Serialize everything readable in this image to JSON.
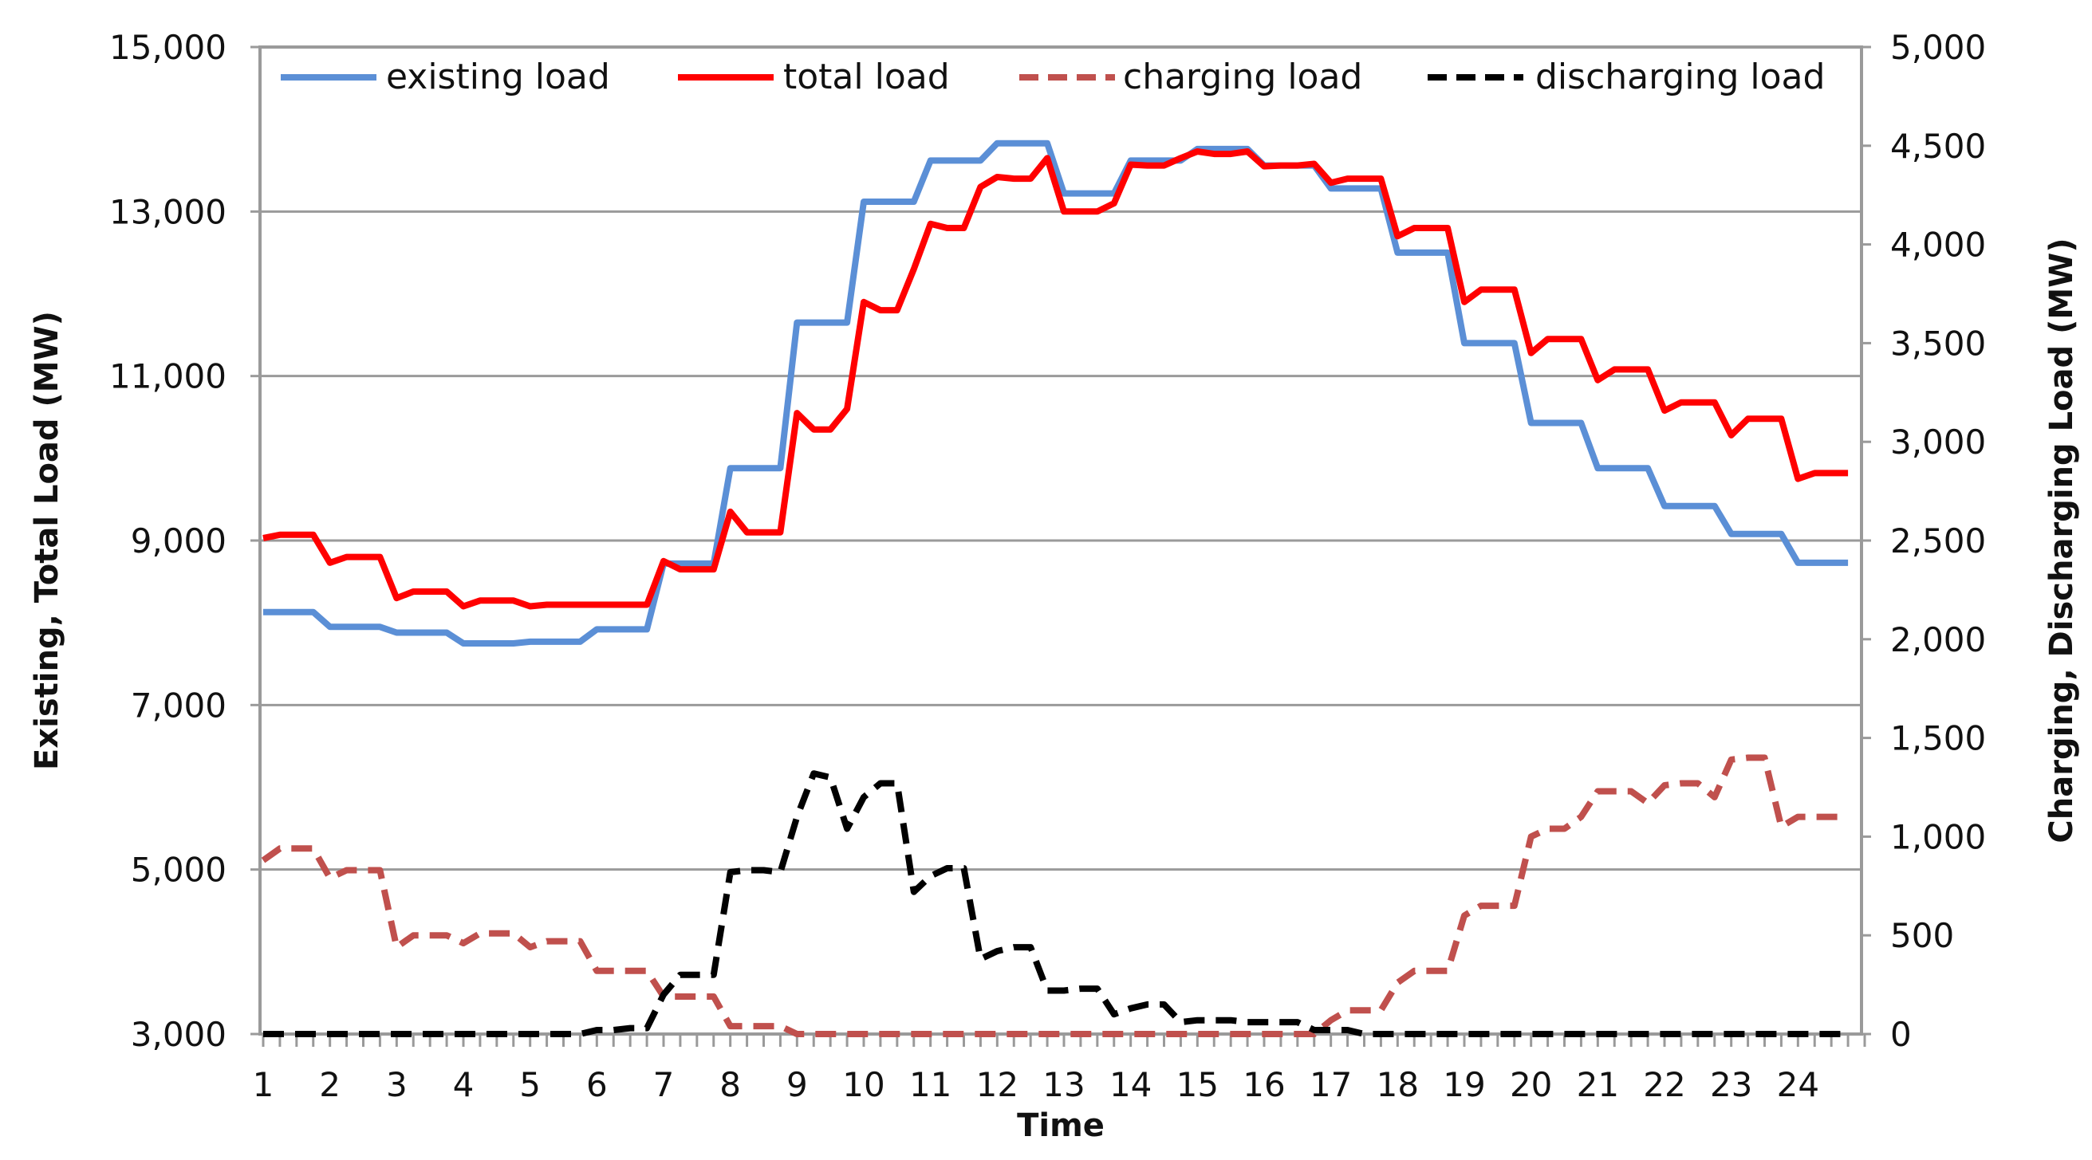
{
  "chart_data": {
    "type": "line",
    "title": "",
    "xlabel": "Time",
    "ylabel_left": "Existing, Total Load (MW)",
    "ylabel_right": "Charging, Discharging Load (MW)",
    "xlim": [
      1,
      25
    ],
    "ylim_left": [
      3000,
      15000
    ],
    "ylim_right": [
      0,
      5000
    ],
    "x_ticks": [
      1,
      2,
      3,
      4,
      5,
      6,
      7,
      8,
      9,
      10,
      11,
      12,
      13,
      14,
      15,
      16,
      17,
      18,
      19,
      20,
      21,
      22,
      23,
      24
    ],
    "y_left_ticks": [
      "3,000",
      "5,000",
      "7,000",
      "9,000",
      "11,000",
      "13,000",
      "15,000"
    ],
    "y_right_ticks": [
      "0",
      "500",
      "1,000",
      "1,500",
      "2,000",
      "2,500",
      "3,000",
      "3,500",
      "4,000",
      "4,500",
      "5,000"
    ],
    "grid": "horizontal, left axis",
    "legend_position": "top",
    "x": [
      1,
      1.25,
      1.5,
      1.75,
      2,
      2.25,
      2.5,
      2.75,
      3,
      3.25,
      3.5,
      3.75,
      4,
      4.25,
      4.5,
      4.75,
      5,
      5.25,
      5.5,
      5.75,
      6,
      6.25,
      6.5,
      6.75,
      7,
      7.25,
      7.5,
      7.75,
      8,
      8.25,
      8.5,
      8.75,
      9,
      9.25,
      9.5,
      9.75,
      10,
      10.25,
      10.5,
      10.75,
      11,
      11.25,
      11.5,
      11.75,
      12,
      12.25,
      12.5,
      12.75,
      13,
      13.25,
      13.5,
      13.75,
      14,
      14.25,
      14.5,
      14.75,
      15,
      15.25,
      15.5,
      15.75,
      16,
      16.25,
      16.5,
      16.75,
      17,
      17.25,
      17.5,
      17.75,
      18,
      18.25,
      18.5,
      18.75,
      19,
      19.25,
      19.5,
      19.75,
      20,
      20.25,
      20.5,
      20.75,
      21,
      21.25,
      21.5,
      21.75,
      22,
      22.25,
      22.5,
      22.75,
      23,
      23.25,
      23.5,
      23.75,
      24,
      24.25,
      24.5,
      24.75
    ],
    "series": [
      {
        "name": "existing load",
        "axis": "left",
        "color": "#5B8FD6",
        "dash": false,
        "values": [
          8130,
          8130,
          8130,
          8130,
          7950,
          7950,
          7950,
          7950,
          7880,
          7880,
          7880,
          7880,
          7750,
          7750,
          7750,
          7750,
          7770,
          7770,
          7770,
          7770,
          7920,
          7920,
          7920,
          7920,
          8720,
          8720,
          8720,
          8720,
          9880,
          9880,
          9880,
          9880,
          11650,
          11650,
          11650,
          11650,
          13120,
          13120,
          13120,
          13120,
          13620,
          13620,
          13620,
          13620,
          13830,
          13830,
          13830,
          13830,
          13220,
          13220,
          13220,
          13220,
          13620,
          13620,
          13620,
          13620,
          13760,
          13760,
          13760,
          13760,
          13560,
          13560,
          13560,
          13560,
          13280,
          13280,
          13280,
          13280,
          12500,
          12500,
          12500,
          12500,
          11400,
          11400,
          11400,
          11400,
          10430,
          10430,
          10430,
          10430,
          9880,
          9880,
          9880,
          9880,
          9420,
          9420,
          9420,
          9420,
          9080,
          9080,
          9080,
          9080,
          8730,
          8730,
          8730,
          8730
        ]
      },
      {
        "name": "total load",
        "axis": "left",
        "color": "#FF0000",
        "dash": false,
        "values": [
          9030,
          9070,
          9070,
          9070,
          8730,
          8800,
          8800,
          8800,
          8300,
          8380,
          8380,
          8380,
          8200,
          8270,
          8270,
          8270,
          8200,
          8220,
          8220,
          8220,
          8220,
          8220,
          8220,
          8220,
          8750,
          8650,
          8650,
          8650,
          9350,
          9100,
          9100,
          9100,
          10550,
          10350,
          10350,
          10600,
          11900,
          11800,
          11800,
          12300,
          12850,
          12800,
          12800,
          13300,
          13420,
          13400,
          13400,
          13650,
          13000,
          13000,
          13000,
          13100,
          13570,
          13560,
          13560,
          13650,
          13730,
          13700,
          13700,
          13730,
          13550,
          13560,
          13560,
          13580,
          13350,
          13400,
          13400,
          13400,
          12700,
          12800,
          12800,
          12800,
          11900,
          12050,
          12050,
          12050,
          11280,
          11450,
          11450,
          11450,
          10950,
          11080,
          11080,
          11080,
          10580,
          10680,
          10680,
          10680,
          10280,
          10480,
          10480,
          10480,
          9750,
          9820,
          9820,
          9820
        ]
      },
      {
        "name": "charging load",
        "axis": "right",
        "color": "#C0504D",
        "dash": true,
        "values": [
          880,
          940,
          940,
          940,
          790,
          830,
          830,
          830,
          440,
          500,
          500,
          500,
          460,
          510,
          510,
          510,
          440,
          470,
          470,
          470,
          320,
          320,
          320,
          320,
          190,
          190,
          190,
          190,
          40,
          40,
          40,
          40,
          0,
          0,
          0,
          0,
          0,
          0,
          0,
          0,
          0,
          0,
          0,
          0,
          0,
          0,
          0,
          0,
          0,
          0,
          0,
          0,
          0,
          0,
          0,
          0,
          0,
          0,
          0,
          0,
          0,
          0,
          0,
          0,
          70,
          120,
          120,
          120,
          260,
          320,
          320,
          320,
          600,
          650,
          650,
          650,
          1000,
          1040,
          1040,
          1100,
          1230,
          1230,
          1230,
          1170,
          1260,
          1270,
          1270,
          1200,
          1390,
          1400,
          1400,
          1050,
          1100,
          1100,
          1100,
          1100
        ]
      },
      {
        "name": "discharging load",
        "axis": "right",
        "color": "#000000",
        "dash": true,
        "values": [
          0,
          0,
          0,
          0,
          0,
          0,
          0,
          0,
          0,
          0,
          0,
          0,
          0,
          0,
          0,
          0,
          0,
          0,
          0,
          0,
          20,
          20,
          30,
          30,
          200,
          300,
          300,
          300,
          820,
          830,
          830,
          820,
          1100,
          1320,
          1300,
          1040,
          1200,
          1270,
          1270,
          720,
          800,
          840,
          840,
          380,
          420,
          440,
          440,
          220,
          220,
          230,
          230,
          100,
          130,
          150,
          150,
          60,
          70,
          70,
          70,
          60,
          60,
          60,
          60,
          20,
          20,
          20,
          0,
          0,
          0,
          0,
          0,
          0,
          0,
          0,
          0,
          0,
          0,
          0,
          0,
          0,
          0,
          0,
          0,
          0,
          0,
          0,
          0,
          0,
          0,
          0,
          0,
          0,
          0,
          0,
          0,
          0
        ]
      }
    ]
  }
}
